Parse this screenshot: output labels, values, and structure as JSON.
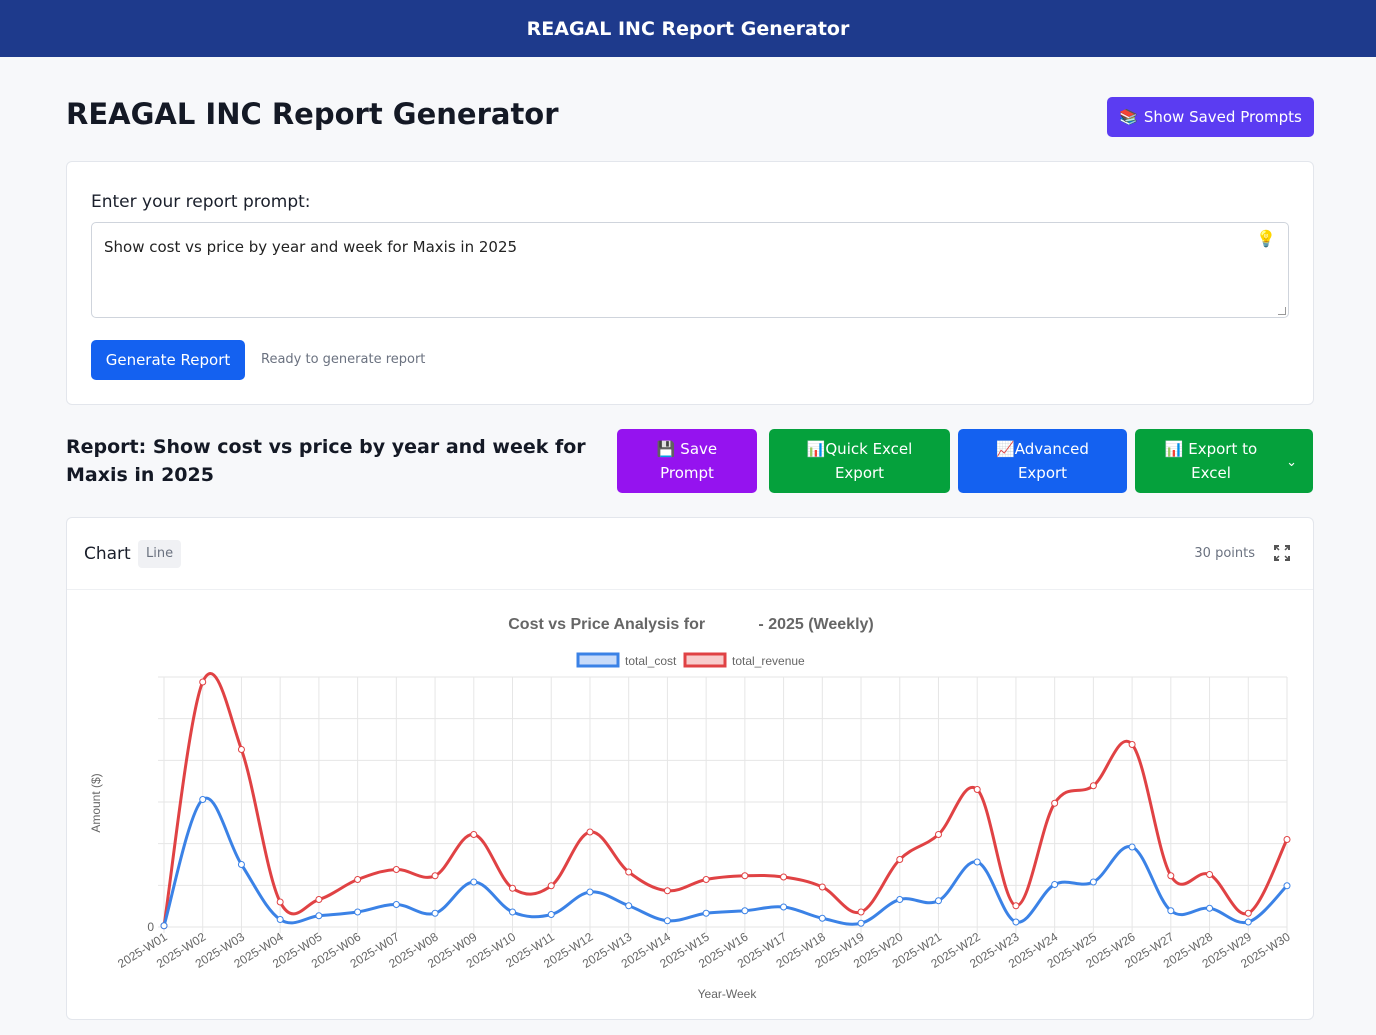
{
  "header": {
    "title": "REAGAL INC Report Generator"
  },
  "page": {
    "title": "REAGAL INC Report Generator",
    "saved_prompts_label": "Show Saved Prompts",
    "saved_prompts_icon": "books-icon"
  },
  "prompt": {
    "label": "Enter your report prompt:",
    "value": "Show cost vs price by year and week for Maxis in 2025",
    "generate_label": "Generate Report",
    "status": "Ready to generate report"
  },
  "report": {
    "title": "Report: Show cost vs price by year and week for Maxis in 2025",
    "save_prompt_label": "💾 Save Prompt",
    "quick_excel_label": "📊Quick Excel Export",
    "advanced_export_label": "📈Advanced Export",
    "export_excel_label": "📊 Export to Excel"
  },
  "chart_panel": {
    "label": "Chart",
    "type_badge": "Line",
    "points": "30 points"
  },
  "chart_data": {
    "type": "line",
    "title": "Cost vs Price Analysis for            - 2025 (Weekly)",
    "xlabel": "Year-Week",
    "ylabel": "Amount ($)",
    "legend_position": "top",
    "grid": true,
    "categories": [
      "2025-W01",
      "2025-W02",
      "2025-W03",
      "2025-W04",
      "2025-W05",
      "2025-W06",
      "2025-W07",
      "2025-W08",
      "2025-W09",
      "2025-W10",
      "2025-W11",
      "2025-W12",
      "2025-W13",
      "2025-W14",
      "2025-W15",
      "2025-W16",
      "2025-W17",
      "2025-W18",
      "2025-W19",
      "2025-W20",
      "2025-W21",
      "2025-W22",
      "2025-W23",
      "2025-W24",
      "2025-W25",
      "2025-W26",
      "2025-W27",
      "2025-W28",
      "2025-W29",
      "2025-W30"
    ],
    "y_ticks": [
      "0"
    ],
    "ylim": [
      0,
      100
    ],
    "series": [
      {
        "name": "total_cost",
        "color": "#3b82e6",
        "values": [
          0.5,
          51,
          25,
          3,
          4.5,
          6,
          9,
          5.5,
          18,
          6,
          5,
          14,
          8.5,
          2.5,
          5.5,
          6.5,
          8,
          3.5,
          1.5,
          11,
          10.5,
          26,
          2,
          17,
          18,
          32,
          6.5,
          7.5,
          2,
          16.5
        ]
      },
      {
        "name": "total_revenue",
        "color": "#e04244",
        "values": [
          0.5,
          98,
          71,
          10,
          11,
          19,
          23,
          20.5,
          37,
          15.5,
          16.5,
          38,
          22,
          14.5,
          19,
          20.5,
          20,
          16,
          6,
          27,
          37,
          55,
          8.5,
          49.5,
          56.5,
          73,
          20.5,
          21,
          5.5,
          35
        ]
      }
    ]
  }
}
